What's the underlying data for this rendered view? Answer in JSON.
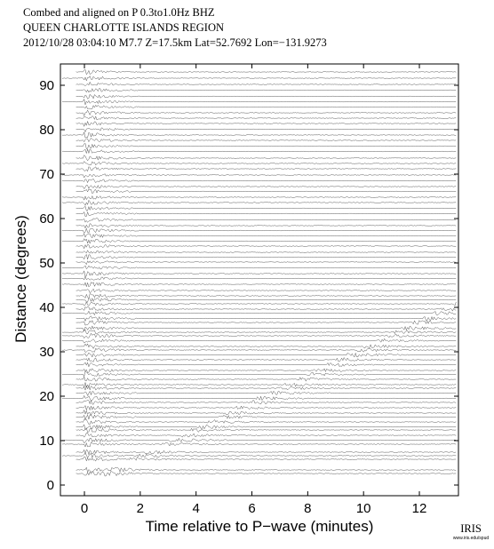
{
  "chart_data": {
    "type": "record-section",
    "title_lines": [
      "Combed and aligned on P  0.3to1.0Hz  BHZ",
      "QUEEN CHARLOTTE ISLANDS REGION",
      "2012/10/28  03:04:10  M7.7  Z=17.5km Lat=52.7692 Lon=−131.9273"
    ],
    "x_label": "Time relative to P−wave (minutes)",
    "y_label": "Distance (degrees)",
    "xlim": [
      -0.86,
      13.4
    ],
    "xticks": [
      0,
      2,
      4,
      6,
      8,
      10,
      12
    ],
    "ylim": [
      -2.4,
      94.8
    ],
    "yticks": [
      0,
      10,
      20,
      30,
      40,
      50,
      60,
      70,
      80,
      90
    ],
    "color": "#555555",
    "traces": [
      2.6,
      3.4,
      5.8,
      6.6,
      7.4,
      9.2,
      10.1,
      11.2,
      12.4,
      13.1,
      14.2,
      15.3,
      16.2,
      17.4,
      18.6,
      19.5,
      20.7,
      21.8,
      22.6,
      23.8,
      24.9,
      25.8,
      27.1,
      28.2,
      29.3,
      30.4,
      31.2,
      32.5,
      33.6,
      34.4,
      35.3,
      36.6,
      37.5,
      38.7,
      39.6,
      40.8,
      41.7,
      42.6,
      43.8,
      45.2,
      46.5,
      47.6,
      48.9,
      50.2,
      51.3,
      52.4,
      53.8,
      54.9,
      56.1,
      57.3,
      58.4,
      59.7,
      61.1,
      62.3,
      63.6,
      64.8,
      66.1,
      67.2,
      68.5,
      69.8,
      71.2,
      72.4,
      73.6,
      75.1,
      76.3,
      77.6,
      78.8,
      80.1,
      81.4,
      82.6,
      83.8,
      85.1,
      86.3,
      87.5,
      88.9,
      90.2,
      91.6,
      93.0
    ],
    "logo": {
      "name": "IRIS",
      "url": "www.iris.edu/spud"
    }
  }
}
